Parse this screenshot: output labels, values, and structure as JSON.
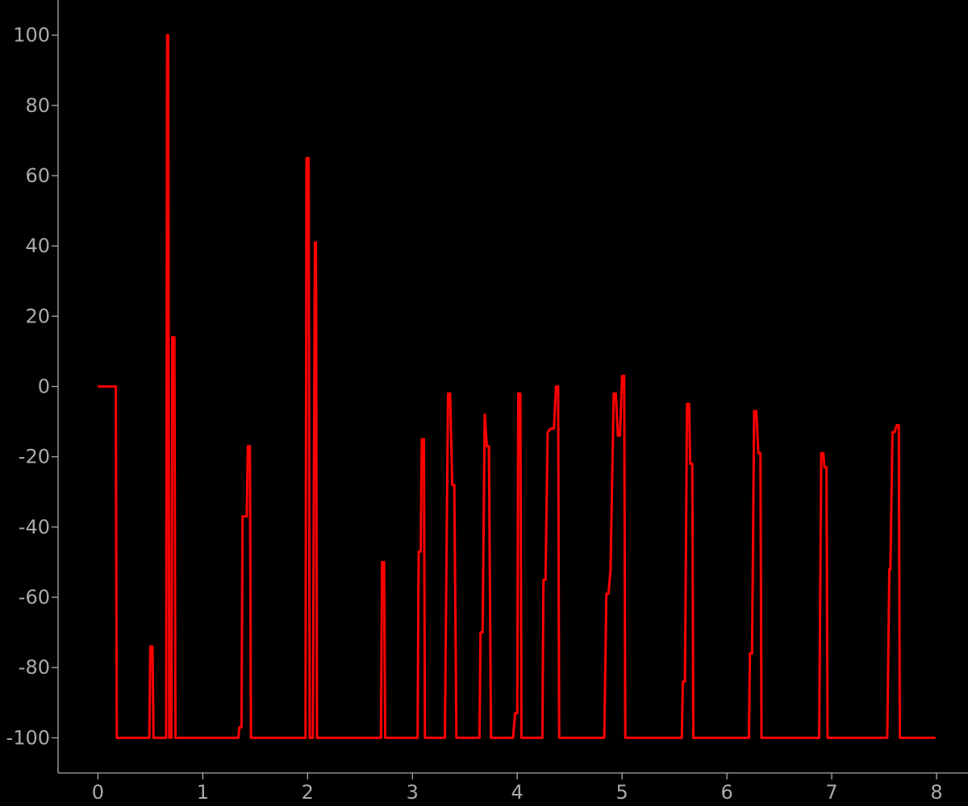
{
  "chart_data": {
    "type": "line",
    "title": "",
    "xlabel": "",
    "ylabel": "",
    "xlim": [
      -0.38,
      8.3
    ],
    "ylim": [
      -110,
      110
    ],
    "x_ticks": [
      0,
      1,
      2,
      3,
      4,
      5,
      6,
      7,
      8
    ],
    "y_ticks": [
      100,
      80,
      60,
      40,
      20,
      0,
      -20,
      -40,
      -60,
      -80,
      -100
    ],
    "grid": false,
    "legend": "none",
    "colors": {
      "background": "#000000",
      "axis": "#aaaaaa",
      "series": "#ff0000"
    },
    "series": [
      {
        "color": "#ff0000",
        "x": [
          0,
          0.17,
          0.18,
          0.49,
          0.5,
          0.52,
          0.53,
          0.65,
          0.66,
          0.67,
          0.68,
          0.7,
          0.71,
          0.73,
          0.74,
          0.76,
          0.77,
          1.34,
          1.35,
          1.37,
          1.38,
          1.42,
          1.43,
          1.45,
          1.46,
          1.98,
          1.99,
          2.01,
          2.02,
          2.04,
          2.05,
          2.07,
          2.08,
          2.09,
          2.1,
          2.7,
          2.71,
          2.73,
          2.74,
          3.05,
          3.06,
          3.08,
          3.09,
          3.11,
          3.12,
          3.14,
          3.31,
          3.34,
          3.36,
          3.38,
          3.4,
          3.42,
          3.43,
          3.64,
          3.65,
          3.67,
          3.69,
          3.71,
          3.73,
          3.75,
          3.76,
          3.96,
          3.98,
          4.0,
          4.01,
          4.03,
          4.04,
          4.06,
          4.24,
          4.25,
          4.27,
          4.29,
          4.32,
          4.35,
          4.37,
          4.39,
          4.4,
          4.83,
          4.85,
          4.87,
          4.89,
          4.92,
          4.94,
          4.96,
          4.98,
          5.0,
          5.02,
          5.03,
          5.05,
          5.57,
          5.58,
          5.6,
          5.62,
          5.64,
          5.65,
          5.67,
          5.68,
          6.21,
          6.22,
          6.24,
          6.26,
          6.28,
          6.3,
          6.32,
          6.33,
          6.88,
          6.9,
          6.92,
          6.93,
          6.95,
          6.96,
          7.53,
          7.55,
          7.56,
          7.58,
          7.6,
          7.62,
          7.64,
          7.65,
          7.99
        ],
        "y": [
          0,
          0,
          -100,
          -100,
          -74,
          -74,
          -100,
          -100,
          100,
          100,
          -100,
          -100,
          14,
          14,
          -100,
          -100,
          -100,
          -100,
          -97,
          -97,
          -37,
          -37,
          -17,
          -17,
          -100,
          -100,
          65,
          65,
          -100,
          -100,
          -100,
          41,
          41,
          -100,
          -100,
          -100,
          -50,
          -50,
          -100,
          -100,
          -47,
          -47,
          -15,
          -15,
          -100,
          -100,
          -100,
          -2,
          -2,
          -28,
          -28,
          -100,
          -100,
          -100,
          -70,
          -70,
          -8,
          -17,
          -17,
          -100,
          -100,
          -100,
          -93,
          -93,
          -2,
          -2,
          -100,
          -100,
          -100,
          -55,
          -55,
          -13,
          -12,
          -12,
          0,
          0,
          -100,
          -100,
          -59,
          -59,
          -52,
          -2,
          -2,
          -14,
          -14,
          3,
          3,
          -100,
          -100,
          -100,
          -84,
          -84,
          -5,
          -5,
          -22,
          -22,
          -100,
          -100,
          -76,
          -76,
          -7,
          -7,
          -19,
          -19,
          -100,
          -100,
          -19,
          -19,
          -23,
          -23,
          -100,
          -100,
          -52,
          -52,
          -13,
          -13,
          -11,
          -11,
          -100,
          -100
        ]
      }
    ]
  }
}
